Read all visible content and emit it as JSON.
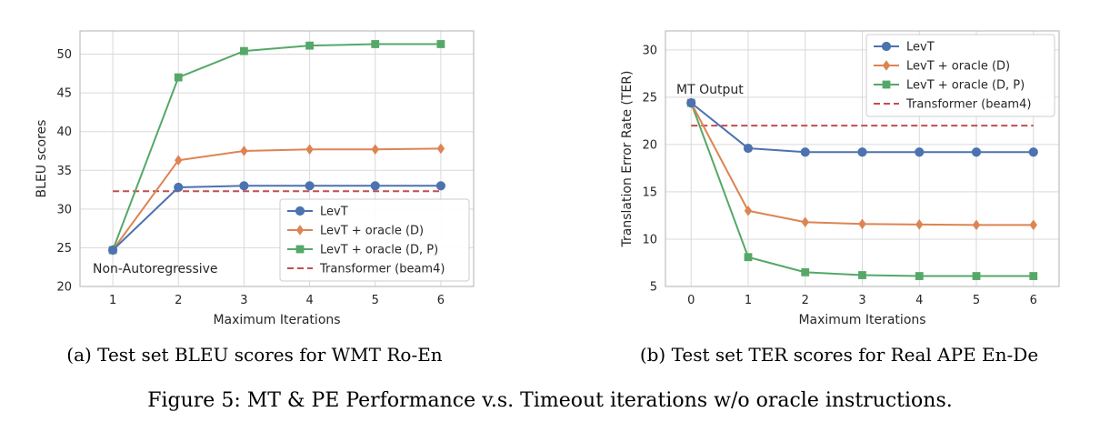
{
  "figure_caption": "Figure 5:  MT & PE Performance v.s. Timeout iterations w/o oracle instructions.",
  "colors": {
    "levt": "#4c72b0",
    "levt_oracle_d": "#dd8452",
    "levt_oracle_dp": "#55a868",
    "transformer": "#c44e52",
    "grid": "#d9d9d9",
    "frame": "#bfbfbf"
  },
  "chart_data": [
    {
      "type": "line",
      "caption": "(a) Test set BLEU scores for WMT Ro-En",
      "xlabel": "Maximum Iterations",
      "ylabel": "BLEU scores",
      "xlim": [
        0.5,
        6.5
      ],
      "ylim": [
        20,
        53
      ],
      "xticks": [
        1,
        2,
        3,
        4,
        5,
        6
      ],
      "yticks": [
        20,
        25,
        30,
        35,
        40,
        45,
        50
      ],
      "grid": true,
      "legend": "lower-right",
      "annotation": "Non-Autoregressive",
      "series": [
        {
          "name": "LevT",
          "marker": "circle",
          "x": [
            1,
            2,
            3,
            4,
            5,
            6
          ],
          "y": [
            24.7,
            32.8,
            33.0,
            33.0,
            33.0,
            33.0
          ]
        },
        {
          "name": "LevT + oracle (D)",
          "marker": "diamond",
          "x": [
            1,
            2,
            3,
            4,
            5,
            6
          ],
          "y": [
            24.7,
            36.3,
            37.5,
            37.7,
            37.7,
            37.8
          ]
        },
        {
          "name": "LevT + oracle (D, P)",
          "marker": "square",
          "x": [
            1,
            2,
            3,
            4,
            5,
            6
          ],
          "y": [
            24.7,
            47.0,
            50.4,
            51.1,
            51.3,
            51.3
          ]
        },
        {
          "name": "Transformer (beam4)",
          "marker": "none",
          "dashed": true,
          "x": [
            1,
            6
          ],
          "y": [
            32.3,
            32.3
          ]
        }
      ]
    },
    {
      "type": "line",
      "caption": "(b) Test set TER scores for Real APE En-De",
      "xlabel": "Maximum Iterations",
      "ylabel": "Translation Error Rate (TER)",
      "xlim": [
        -0.45,
        6.45
      ],
      "ylim": [
        5,
        32
      ],
      "xticks": [
        0,
        1,
        2,
        3,
        4,
        5,
        6
      ],
      "yticks": [
        5,
        10,
        15,
        20,
        25,
        30
      ],
      "grid": true,
      "legend": "upper-right",
      "annotation": "MT Output",
      "series": [
        {
          "name": "LevT",
          "marker": "circle",
          "x": [
            0,
            1,
            2,
            3,
            4,
            5,
            6
          ],
          "y": [
            24.4,
            19.6,
            19.2,
            19.2,
            19.2,
            19.2,
            19.2
          ]
        },
        {
          "name": "LevT + oracle (D)",
          "marker": "diamond",
          "x": [
            0,
            1,
            2,
            3,
            4,
            5,
            6
          ],
          "y": [
            24.4,
            13.0,
            11.8,
            11.6,
            11.55,
            11.5,
            11.5
          ]
        },
        {
          "name": "LevT + oracle (D, P)",
          "marker": "square",
          "x": [
            0,
            1,
            2,
            3,
            4,
            5,
            6
          ],
          "y": [
            24.4,
            8.1,
            6.5,
            6.2,
            6.1,
            6.1,
            6.1
          ]
        },
        {
          "name": "Transformer (beam4)",
          "marker": "none",
          "dashed": true,
          "x": [
            0,
            6
          ],
          "y": [
            22.0,
            22.0
          ]
        }
      ]
    }
  ]
}
